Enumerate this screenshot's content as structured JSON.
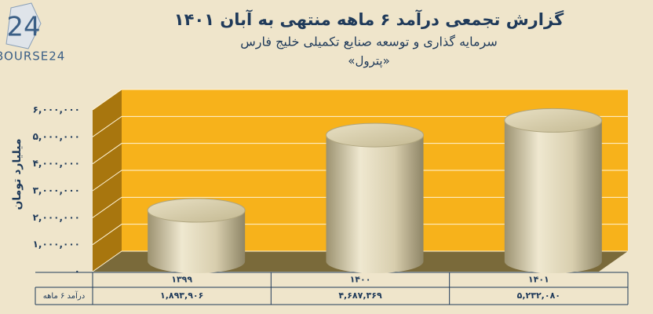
{
  "logo": "BOURSE24",
  "chart_data": {
    "type": "cylinder",
    "title": "گزارش تجمعی درآمد ۶ ماهه منتهی به آبان ۱۴۰۱",
    "subtitle": "سرمایه گذاری و توسعه صنایع تکمیلی خلیج فارس",
    "caption": "«پترول»",
    "ylabel": "میلیارد تومان",
    "categories": [
      "۱۳۹۹",
      "۱۴۰۰",
      "۱۴۰۱"
    ],
    "series": [
      {
        "name": "درآمد ۶ ماهه",
        "color": "#d9cfae",
        "values": [
          1893906,
          4687369,
          5232080
        ],
        "value_labels": [
          "۱,۸۹۳,۹۰۶",
          "۴,۶۸۷,۳۶۹",
          "۵,۲۳۲,۰۸۰"
        ]
      }
    ],
    "ylim": [
      0,
      6000000
    ],
    "yticks": [
      {
        "value": 0,
        "label": "۰"
      },
      {
        "value": 1000000,
        "label": "۱,۰۰۰,۰۰۰"
      },
      {
        "value": 2000000,
        "label": "۲,۰۰۰,۰۰۰"
      },
      {
        "value": 3000000,
        "label": "۳,۰۰۰,۰۰۰"
      },
      {
        "value": 4000000,
        "label": "۴,۰۰۰,۰۰۰"
      },
      {
        "value": 5000000,
        "label": "۵,۰۰۰,۰۰۰"
      },
      {
        "value": 6000000,
        "label": "۶,۰۰۰,۰۰۰"
      }
    ],
    "grid": true,
    "wall_color": "#f7b21b"
  }
}
